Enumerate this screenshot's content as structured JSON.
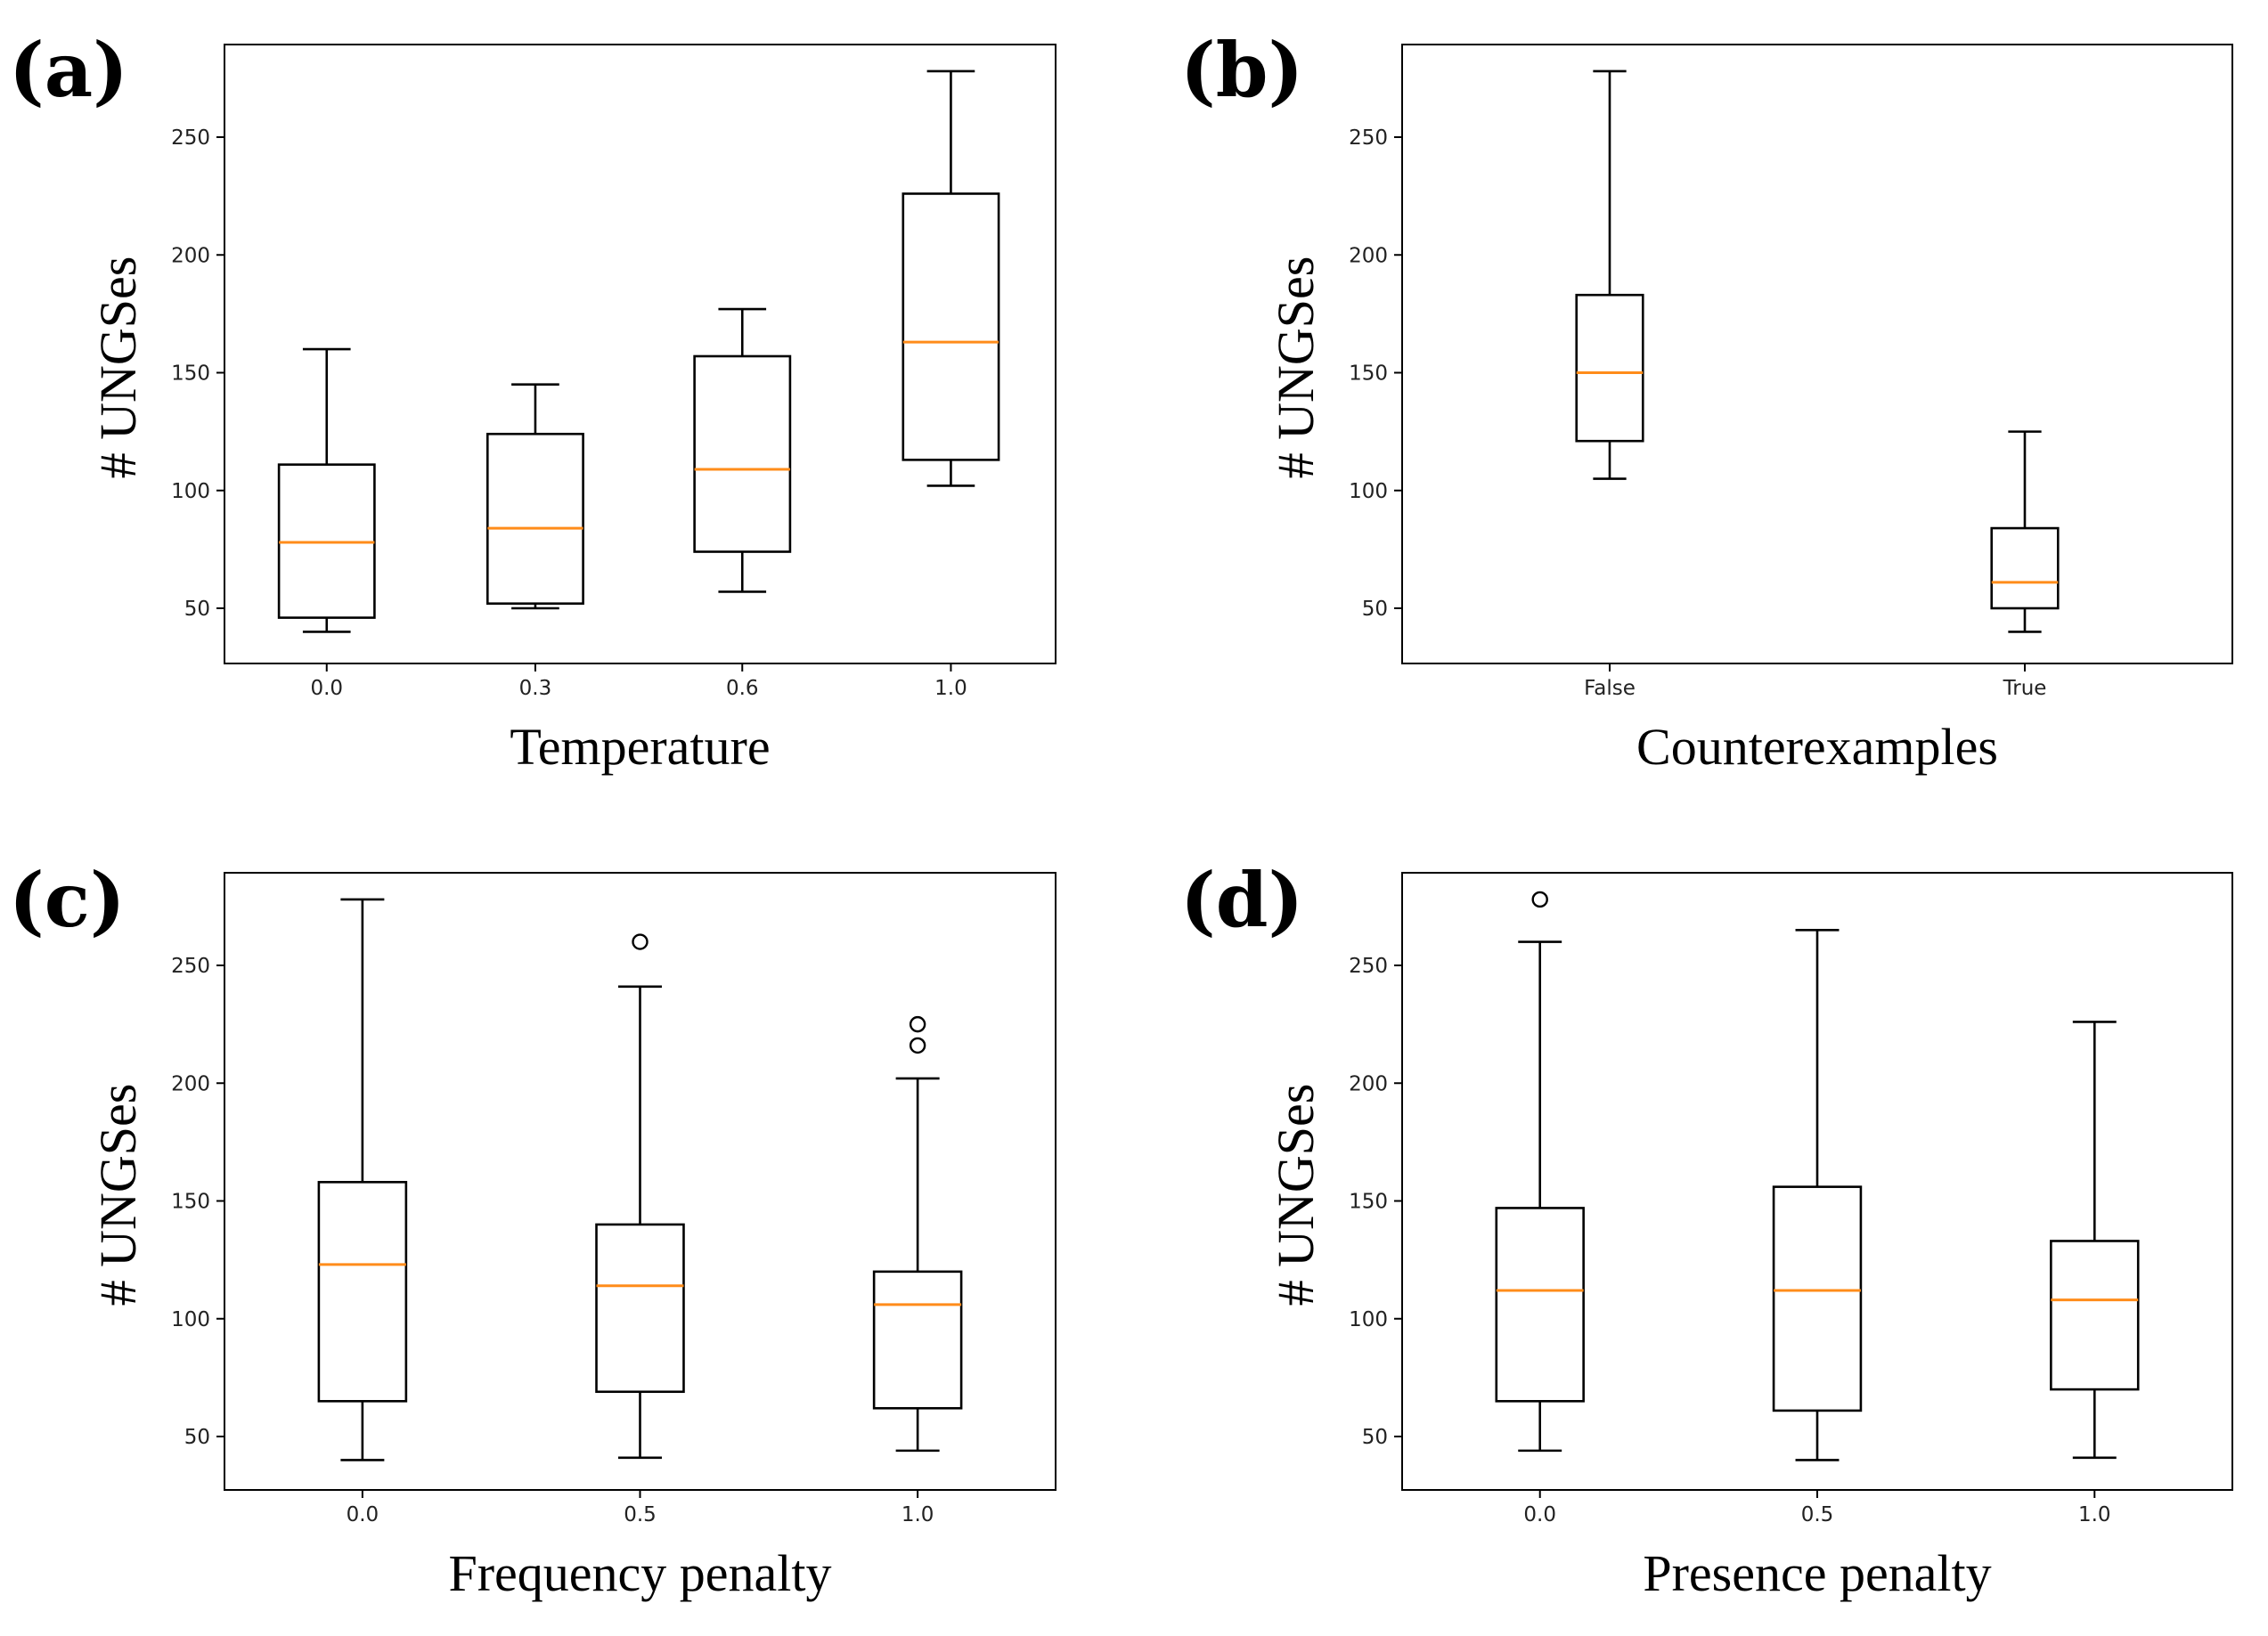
{
  "colors": {
    "median": "#ff8c1a",
    "box_edge": "#000000",
    "background": "#ffffff"
  },
  "chart_data": [
    {
      "panel": "(a)",
      "type": "box",
      "title": "",
      "xlabel": "Temperature",
      "ylabel": "# UNGSes",
      "ylim": [
        25,
        288
      ],
      "yticks": [
        50,
        100,
        150,
        200,
        250
      ],
      "categories": [
        "0.0",
        "0.3",
        "0.6",
        "1.0"
      ],
      "boxes": [
        {
          "label": "0.0",
          "whisker_low": 40,
          "q1": 46,
          "median": 78,
          "q3": 111,
          "whisker_high": 160,
          "outliers": []
        },
        {
          "label": "0.3",
          "whisker_low": 50,
          "q1": 52,
          "median": 84,
          "q3": 124,
          "whisker_high": 145,
          "outliers": []
        },
        {
          "label": "0.6",
          "whisker_low": 57,
          "q1": 74,
          "median": 109,
          "q3": 157,
          "whisker_high": 177,
          "outliers": []
        },
        {
          "label": "1.0",
          "whisker_low": 102,
          "q1": 113,
          "median": 163,
          "q3": 226,
          "whisker_high": 278,
          "outliers": []
        }
      ]
    },
    {
      "panel": "(b)",
      "type": "box",
      "title": "",
      "xlabel": "Counterexamples",
      "ylabel": "# UNGSes",
      "ylim": [
        25,
        288
      ],
      "yticks": [
        50,
        100,
        150,
        200,
        250
      ],
      "categories": [
        "False",
        "True"
      ],
      "boxes": [
        {
          "label": "False",
          "whisker_low": 105,
          "q1": 121,
          "median": 150,
          "q3": 183,
          "whisker_high": 278,
          "outliers": []
        },
        {
          "label": "True",
          "whisker_low": 40,
          "q1": 50,
          "median": 61,
          "q3": 84,
          "whisker_high": 125,
          "outliers": []
        }
      ]
    },
    {
      "panel": "(c)",
      "type": "box",
      "title": "",
      "xlabel": "Frequency penalty",
      "ylabel": "# UNGSes",
      "ylim": [
        25,
        288
      ],
      "yticks": [
        50,
        100,
        150,
        200,
        250
      ],
      "categories": [
        "0.0",
        "0.5",
        "1.0"
      ],
      "boxes": [
        {
          "label": "0.0",
          "whisker_low": 40,
          "q1": 65,
          "median": 123,
          "q3": 158,
          "whisker_high": 278,
          "outliers": []
        },
        {
          "label": "0.5",
          "whisker_low": 41,
          "q1": 69,
          "median": 114,
          "q3": 140,
          "whisker_high": 241,
          "outliers": [
            260
          ]
        },
        {
          "label": "1.0",
          "whisker_low": 44,
          "q1": 62,
          "median": 106,
          "q3": 120,
          "whisker_high": 202,
          "outliers": [
            216,
            225
          ]
        }
      ]
    },
    {
      "panel": "(d)",
      "type": "box",
      "title": "",
      "xlabel": "Presence penalty",
      "ylabel": "# UNGSes",
      "ylim": [
        25,
        288
      ],
      "yticks": [
        50,
        100,
        150,
        200,
        250
      ],
      "categories": [
        "0.0",
        "0.5",
        "1.0"
      ],
      "boxes": [
        {
          "label": "0.0",
          "whisker_low": 44,
          "q1": 65,
          "median": 112,
          "q3": 147,
          "whisker_high": 260,
          "outliers": [
            278
          ]
        },
        {
          "label": "0.5",
          "whisker_low": 40,
          "q1": 61,
          "median": 112,
          "q3": 156,
          "whisker_high": 265,
          "outliers": []
        },
        {
          "label": "1.0",
          "whisker_low": 41,
          "q1": 70,
          "median": 108,
          "q3": 133,
          "whisker_high": 226,
          "outliers": []
        }
      ]
    }
  ]
}
